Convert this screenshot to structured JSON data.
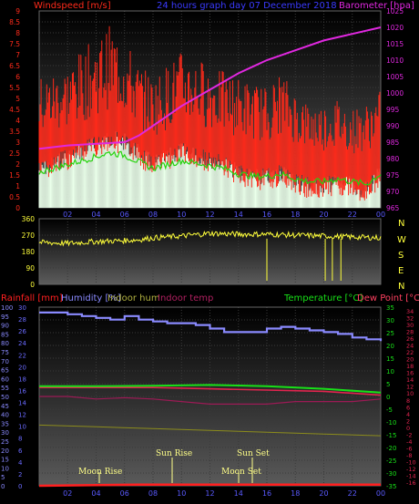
{
  "colors": {
    "wind": "#ff2a1a",
    "gust_bg": "#eaffea",
    "wind_avg": "#25d40d",
    "baro": "#e028e0",
    "dir": "#ffff3a",
    "dir_labels": "#ffff3a",
    "humidity": "#8a8aff",
    "temp": "#18e018",
    "dewpoint": "#e2244f",
    "indoor_temp": "#9c1a55",
    "indoor_hum": "#8c8c1c",
    "rain": "#ff2020",
    "rain_axis": "#6a6aff",
    "astro": "#ffff88"
  },
  "header": {
    "windspeed_title": "Windspeed [m/s]",
    "graph_title": "24 hours graph day   07 December 2018",
    "barometer_title": "Barometer [hpa]"
  },
  "direction_labels": [
    "N",
    "W",
    "S",
    "E",
    "N"
  ],
  "bottom_header": {
    "rainfall": "Rainfall [mm]",
    "humidity": "Humidity [%]",
    "indoor_hum": "Indoor hum",
    "indoor_temp": "Indoor temp",
    "temperature": "Temperature [°C]",
    "dewpoint": "Dew Point [°C]"
  },
  "astro": {
    "moon_rise": "Moon Rise",
    "sun_rise": "Sun Rise",
    "sun_set": "Sun Set",
    "moon_set": "Moon Set"
  },
  "chart_data": [
    {
      "type": "line",
      "panel": "wind_baro",
      "x_hours": [
        "02",
        "04",
        "06",
        "08",
        "10",
        "12",
        "14",
        "16",
        "18",
        "20",
        "22",
        "00"
      ],
      "wind_ticks": [
        "0",
        "0.5",
        "1",
        "1.5",
        "2",
        "2.5",
        "3",
        "3.5",
        "4",
        "4.5",
        "5",
        "5.5",
        "6",
        "6.5",
        "7",
        "7.5",
        "8",
        "8.5",
        "9"
      ],
      "wind_range": [
        0,
        9
      ],
      "baro_ticks": [
        "965",
        "970",
        "975",
        "980",
        "985",
        "990",
        "995",
        "1000",
        "1005",
        "1010",
        "1015",
        "1020",
        "1025"
      ],
      "baro_range": [
        965,
        1025
      ],
      "series": [
        {
          "name": "Barometer",
          "x": [
            0,
            2,
            4,
            6,
            7,
            8,
            10,
            12,
            14,
            15,
            16,
            18,
            20,
            22,
            24
          ],
          "y": [
            983,
            984,
            984.5,
            985,
            987,
            990,
            996,
            1001,
            1006,
            1008,
            1010,
            1013,
            1016,
            1018,
            1020
          ]
        },
        {
          "name": "Windspeed",
          "x": [
            0,
            1,
            2,
            3,
            4,
            5,
            6,
            7,
            8,
            9,
            10,
            11,
            12,
            13,
            14,
            15,
            16,
            17,
            18,
            19,
            20,
            21,
            22,
            23,
            24
          ],
          "y": [
            2.7,
            3.0,
            3.3,
            3.6,
            3.9,
            4.2,
            4.0,
            3.5,
            3.0,
            3.3,
            3.6,
            3.4,
            3.2,
            3.0,
            2.6,
            2.4,
            2.4,
            2.6,
            2.2,
            2.0,
            2.0,
            2.2,
            2.0,
            1.8,
            2.6
          ]
        },
        {
          "name": "Wind gust",
          "x": [
            0,
            2,
            4,
            5,
            6,
            7,
            8,
            9,
            10,
            11,
            12,
            13,
            14,
            15,
            16,
            17,
            18,
            19,
            20,
            21,
            22,
            23,
            24
          ],
          "y": [
            5.0,
            5.5,
            6.5,
            7.0,
            6.5,
            5.5,
            5.0,
            5.5,
            6.0,
            5.8,
            5.5,
            5.2,
            5.0,
            4.8,
            4.6,
            5.2,
            4.5,
            4.0,
            4.0,
            4.2,
            3.8,
            4.0,
            4.5
          ]
        }
      ]
    },
    {
      "type": "line",
      "panel": "wind_direction",
      "dir_ticks": [
        "0",
        "90",
        "180",
        "270",
        "360"
      ],
      "dir_range": [
        0,
        360
      ],
      "series": [
        {
          "name": "Direction",
          "x": [
            0,
            2,
            4,
            6,
            7,
            8,
            10,
            12,
            14,
            16,
            18,
            20,
            22,
            24
          ],
          "y": [
            230,
            225,
            235,
            240,
            245,
            255,
            265,
            280,
            275,
            275,
            270,
            265,
            260,
            255
          ]
        }
      ]
    },
    {
      "type": "line",
      "panel": "temp_hum_rain",
      "rain_ticks": [
        "0",
        "2",
        "4",
        "6",
        "8",
        "10",
        "12",
        "14",
        "16",
        "18",
        "20",
        "22",
        "24",
        "26",
        "28",
        "30"
      ],
      "rain_range": [
        0,
        30
      ],
      "hum_ticks": [
        "0",
        "5",
        "10",
        "15",
        "20",
        "25",
        "30",
        "35",
        "40",
        "45",
        "50",
        "55",
        "60",
        "65",
        "70",
        "75",
        "80",
        "85",
        "90",
        "95",
        "100"
      ],
      "hum_range": [
        0,
        100
      ],
      "temp_ticks": [
        "-35",
        "-30",
        "-25",
        "-20",
        "-15",
        "-10",
        "-5",
        "0",
        "5",
        "10",
        "15",
        "20",
        "25",
        "30",
        "35"
      ],
      "temp_range": [
        -35,
        35
      ],
      "dew_ticks": [
        "-16",
        "-14",
        "-12",
        "-10",
        "-8",
        "-6",
        "-4",
        "-2",
        "0",
        "2",
        "4",
        "6",
        "8",
        "10",
        "12",
        "14",
        "16",
        "18",
        "20",
        "22",
        "24",
        "26",
        "28",
        "30",
        "32",
        "34"
      ],
      "series": [
        {
          "name": "Humidity",
          "x": [
            0,
            1,
            2,
            3,
            4,
            5,
            6,
            7,
            8,
            9,
            10,
            11,
            12,
            13,
            14,
            15,
            16,
            17,
            18,
            19,
            20,
            21,
            22,
            23,
            24
          ],
          "y": [
            97,
            97,
            96,
            95,
            94,
            93,
            95,
            93,
            92,
            91,
            91,
            90,
            88,
            86,
            86,
            86,
            88,
            89,
            88,
            87,
            86,
            85,
            83,
            82,
            81
          ]
        },
        {
          "name": "Temperature",
          "x": [
            0,
            4,
            8,
            12,
            14,
            16,
            20,
            24
          ],
          "y": [
            4.0,
            4.0,
            4.2,
            4.5,
            4.3,
            4.0,
            3.0,
            1.5
          ]
        },
        {
          "name": "Dew Point",
          "x": [
            0,
            4,
            8,
            12,
            16,
            20,
            24
          ],
          "y": [
            3.5,
            3.5,
            3.5,
            3.0,
            2.5,
            2.0,
            0.5
          ]
        },
        {
          "name": "Indoor temp",
          "x": [
            0,
            2,
            4,
            6,
            8,
            10,
            12,
            14,
            16,
            18,
            20,
            22,
            24
          ],
          "y": [
            0,
            0,
            -1,
            -0.5,
            -1,
            -2,
            -3,
            -3,
            -3,
            -2,
            -2,
            -2,
            -1
          ]
        },
        {
          "name": "Indoor hum",
          "x": [
            0,
            4,
            8,
            12,
            16,
            20,
            24
          ],
          "y": [
            34,
            33,
            32,
            31,
            30,
            29,
            28
          ]
        },
        {
          "name": "Rainfall",
          "x": [
            0,
            7,
            24
          ],
          "y": [
            0,
            0.2,
            0.2
          ]
        }
      ]
    }
  ]
}
